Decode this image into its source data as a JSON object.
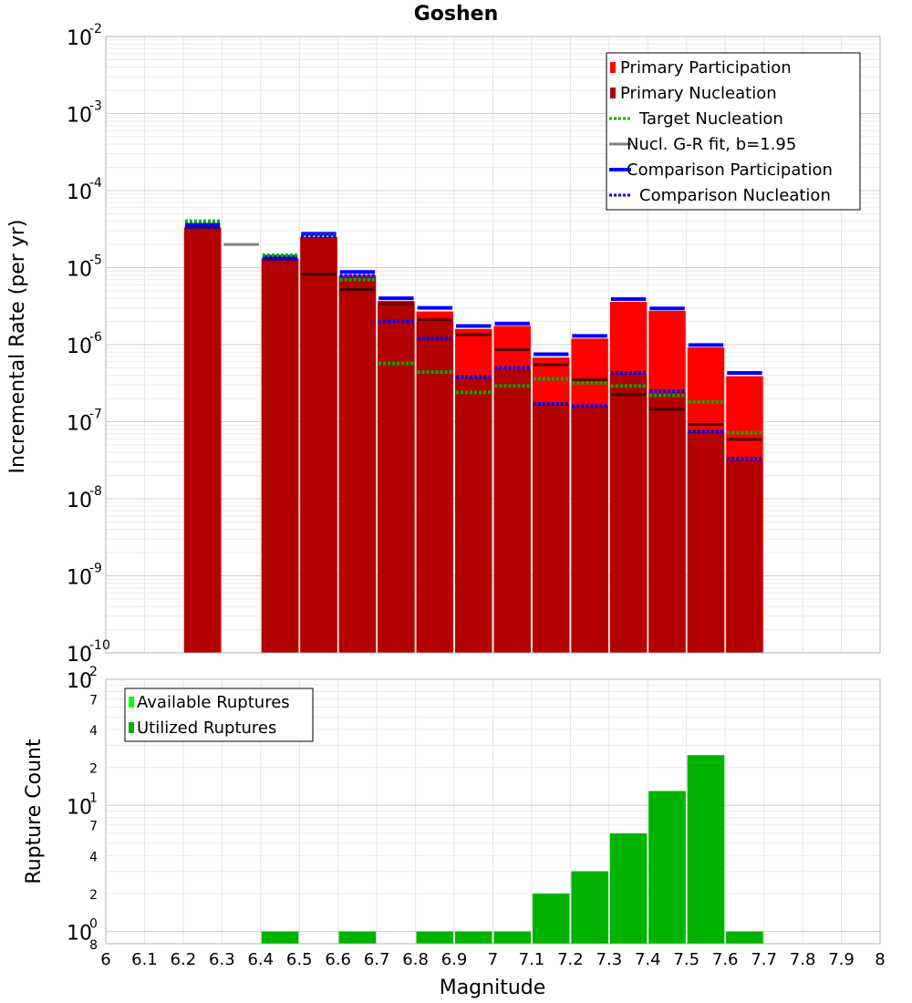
{
  "chart_data": [
    {
      "type": "bar",
      "title": "Goshen",
      "xlabel": "",
      "ylabel": "Incremental Rate (per yr)",
      "yscale": "log",
      "ylim": [
        1e-10,
        0.01
      ],
      "xlim": [
        6.0,
        8.0
      ],
      "bar_width": 0.1,
      "grid": true,
      "legend_position": "top-right",
      "y_ticks": [
        {
          "base": "10",
          "exp": "-10"
        },
        {
          "base": "10",
          "exp": "-9"
        },
        {
          "base": "10",
          "exp": "-8"
        },
        {
          "base": "10",
          "exp": "-7"
        },
        {
          "base": "10",
          "exp": "-6"
        },
        {
          "base": "10",
          "exp": "-5"
        },
        {
          "base": "10",
          "exp": "-4"
        },
        {
          "base": "10",
          "exp": "-3"
        },
        {
          "base": "10",
          "exp": "-2"
        }
      ],
      "legend": [
        {
          "label": "Primary Participation",
          "style": "box",
          "color": "#ff0000"
        },
        {
          "label": "Primary Nucleation",
          "style": "box",
          "color": "#b30000"
        },
        {
          "label": "Target Nucleation",
          "style": "dotted",
          "color": "#00b000"
        },
        {
          "label": "Nucl. G-R fit, b=1.95",
          "style": "solid",
          "color": "#808080"
        },
        {
          "label": "Comparison Participation",
          "style": "solid-thick",
          "color": "#0000ff"
        },
        {
          "label": "Comparison Nucleation",
          "style": "dotted",
          "color": "#0000ff"
        }
      ],
      "series": [
        {
          "name": "Primary Participation",
          "color": "#ff0000",
          "x": [
            6.25,
            6.45,
            6.55,
            6.65,
            6.75,
            6.85,
            6.95,
            7.05,
            7.15,
            7.25,
            7.35,
            7.45,
            7.55,
            7.65
          ],
          "values": [
            3.3e-05,
            1.3e-05,
            2.5e-05,
            8e-06,
            3.7e-06,
            2.7e-06,
            1.6e-06,
            1.75e-06,
            6.8e-07,
            1.2e-06,
            3.6e-06,
            2.75e-06,
            9.2e-07,
            3.9e-07
          ]
        },
        {
          "name": "Primary Nucleation",
          "color": "#b30000",
          "x": [
            6.25,
            6.45,
            6.55,
            6.65,
            6.75,
            6.85,
            6.95,
            7.05,
            7.15,
            7.25,
            7.35,
            7.45,
            7.55,
            7.65
          ],
          "values": [
            3.3e-05,
            1.3e-05,
            2.5e-05,
            7.5e-06,
            3.3e-06,
            2e-06,
            3.8e-07,
            4.8e-07,
            1.7e-07,
            1.6e-07,
            4.2e-07,
            2.4e-07,
            7.4e-08,
            3.2e-08
          ]
        },
        {
          "name": "Target Nucleation",
          "color": "#00b000",
          "x": [
            6.25,
            6.45,
            6.55,
            6.65,
            6.75,
            6.85,
            6.95,
            7.05,
            7.15,
            7.25,
            7.35,
            7.45,
            7.55,
            7.65
          ],
          "values": [
            4e-05,
            1.45e-05,
            2.6e-05,
            7e-06,
            5.7e-07,
            4.4e-07,
            2.4e-07,
            2.9e-07,
            3.6e-07,
            3.2e-07,
            2.9e-07,
            2.2e-07,
            1.8e-07,
            7.2e-08
          ]
        },
        {
          "name": "Nucl. G-R fit, b=1.95",
          "color": "#808080",
          "x": [
            6.25,
            6.35,
            6.45,
            6.55,
            6.65,
            6.75,
            6.85,
            6.95,
            7.05,
            7.15,
            7.25,
            7.35,
            7.45,
            7.55,
            7.65
          ],
          "values": [
            3.3e-05,
            2e-05,
            1.3e-05,
            8.2e-06,
            5.2e-06,
            3.4e-06,
            2.1e-06,
            1.35e-06,
            8.6e-07,
            5.5e-07,
            3.5e-07,
            2.25e-07,
            1.45e-07,
            9.2e-08,
            5.9e-08
          ]
        },
        {
          "name": "Comparison Participation",
          "color": "#0000ff",
          "x": [
            6.25,
            6.45,
            6.55,
            6.65,
            6.75,
            6.85,
            6.95,
            7.05,
            7.15,
            7.25,
            7.35,
            7.45,
            7.55,
            7.65
          ],
          "values": [
            3.6e-05,
            1.38e-05,
            2.75e-05,
            8.8e-06,
            4e-06,
            3e-06,
            1.75e-06,
            1.88e-06,
            7.5e-07,
            1.3e-06,
            3.9e-06,
            2.95e-06,
            9.9e-07,
            4.3e-07
          ]
        },
        {
          "name": "Comparison Nucleation",
          "color": "#0000ff",
          "x": [
            6.25,
            6.45,
            6.55,
            6.65,
            6.75,
            6.85,
            6.95,
            7.05,
            7.15,
            7.25,
            7.35,
            7.45,
            7.55,
            7.65
          ],
          "values": [
            3.4e-05,
            1.3e-05,
            2.55e-05,
            7.8e-06,
            2e-06,
            1.2e-06,
            3.8e-07,
            5e-07,
            1.7e-07,
            1.6e-07,
            4.3e-07,
            2.5e-07,
            7.5e-08,
            3.3e-08
          ]
        }
      ]
    },
    {
      "type": "bar",
      "title": "",
      "xlabel": "Magnitude",
      "ylabel": "Rupture Count",
      "yscale": "log",
      "ylim": [
        0.8,
        100
      ],
      "xlim": [
        6.0,
        8.0
      ],
      "bar_width": 0.1,
      "grid": true,
      "legend_position": "top-left",
      "x_ticks": [
        "6",
        "6.1",
        "6.2",
        "6.3",
        "6.4",
        "6.5",
        "6.6",
        "6.7",
        "6.8",
        "6.9",
        "7",
        "7.1",
        "7.2",
        "7.3",
        "7.4",
        "7.5",
        "7.6",
        "7.7",
        "7.8",
        "7.9",
        "8"
      ],
      "y_ticks": [
        {
          "v": 1,
          "base": "10",
          "exp": "0"
        },
        {
          "v": 10,
          "base": "10",
          "exp": "1"
        },
        {
          "v": 100,
          "base": "10",
          "exp": "2"
        }
      ],
      "y_minor_ticks": [
        {
          "v": 0.8,
          "label": "8"
        },
        {
          "v": 2,
          "label": "2"
        },
        {
          "v": 4,
          "label": "4"
        },
        {
          "v": 7,
          "label": "7"
        },
        {
          "v": 20,
          "label": "2"
        },
        {
          "v": 40,
          "label": "4"
        },
        {
          "v": 70,
          "label": "7"
        }
      ],
      "legend": [
        {
          "label": "Available Ruptures",
          "color": "#00ff00"
        },
        {
          "label": "Utilized Ruptures",
          "color": "#00b300"
        }
      ],
      "series": [
        {
          "name": "Available Ruptures",
          "color": "#00ff00",
          "x": [
            6.45,
            6.65,
            6.85,
            6.95,
            7.05,
            7.15,
            7.25,
            7.35,
            7.45,
            7.55,
            7.65
          ],
          "values": [
            1,
            1,
            1,
            1,
            1,
            2,
            3,
            6,
            13,
            25,
            1
          ]
        },
        {
          "name": "Utilized Ruptures",
          "color": "#00b300",
          "x": [
            6.45,
            6.65,
            6.85,
            6.95,
            7.05,
            7.15,
            7.25,
            7.35,
            7.45,
            7.55,
            7.65
          ],
          "values": [
            1,
            1,
            1,
            1,
            1,
            2,
            3,
            6,
            13,
            25,
            1
          ]
        }
      ]
    }
  ]
}
